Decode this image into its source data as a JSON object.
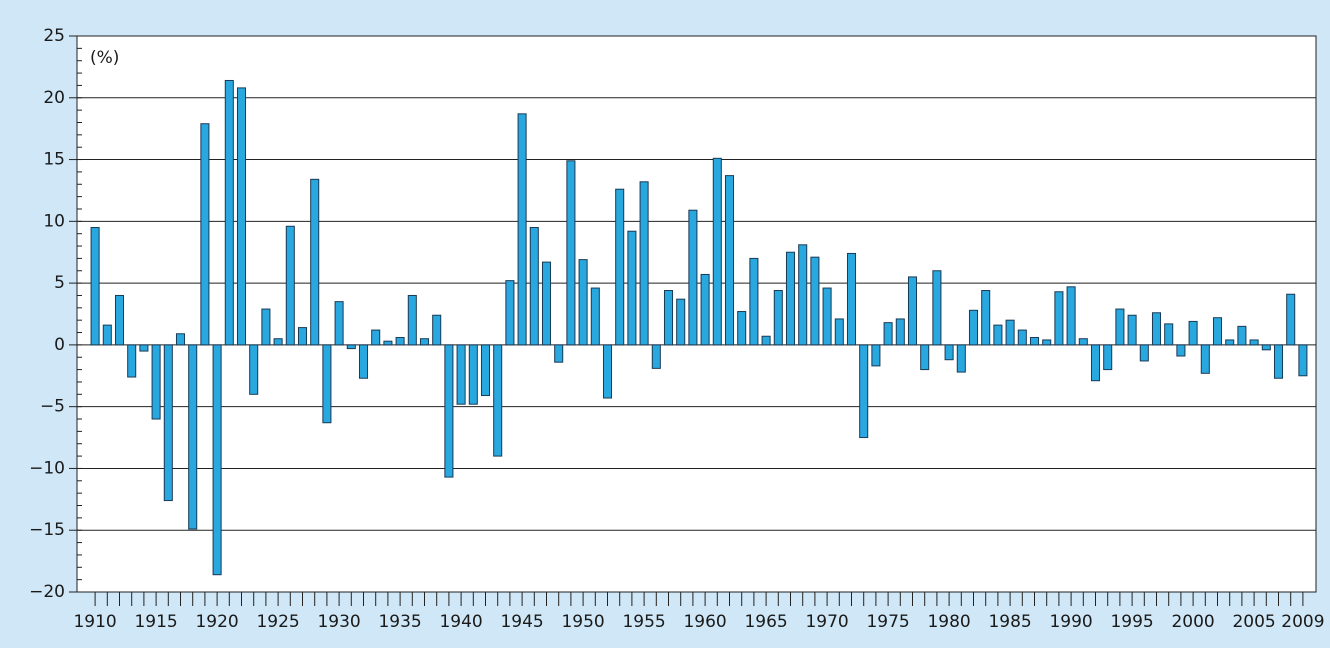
{
  "chart_data": {
    "type": "bar",
    "annotation": "(%)",
    "categories": [
      "1910",
      null,
      null,
      null,
      null,
      "1915",
      null,
      null,
      null,
      null,
      "1920",
      null,
      null,
      null,
      null,
      "1925",
      null,
      null,
      null,
      null,
      "1930",
      null,
      null,
      null,
      null,
      "1935",
      null,
      null,
      null,
      null,
      "1940",
      null,
      null,
      null,
      null,
      "1945",
      null,
      null,
      null,
      null,
      "1950",
      null,
      null,
      null,
      null,
      "1955",
      null,
      null,
      null,
      null,
      "1960",
      null,
      null,
      null,
      null,
      "1965",
      null,
      null,
      null,
      null,
      "1970",
      null,
      null,
      null,
      null,
      "1975",
      null,
      null,
      null,
      null,
      "1980",
      null,
      null,
      null,
      null,
      "1985",
      null,
      null,
      null,
      null,
      "1990",
      null,
      null,
      null,
      null,
      "1995",
      null,
      null,
      null,
      null,
      "2000",
      null,
      null,
      null,
      null,
      "2005",
      null,
      null,
      null,
      "2009"
    ],
    "values": [
      9.5,
      1.6,
      4.0,
      -2.6,
      -0.5,
      -6.0,
      -12.6,
      0.9,
      -14.9,
      17.9,
      -18.6,
      21.4,
      20.8,
      -4.0,
      2.9,
      0.5,
      9.6,
      1.4,
      13.4,
      -6.3,
      3.5,
      -0.3,
      -2.7,
      1.2,
      0.3,
      0.6,
      4.0,
      0.5,
      2.4,
      -10.7,
      -4.8,
      -4.8,
      -4.1,
      -9.0,
      5.2,
      18.7,
      9.5,
      6.7,
      -1.4,
      14.9,
      6.9,
      4.6,
      -4.3,
      12.6,
      9.2,
      13.2,
      -1.9,
      4.4,
      3.7,
      10.9,
      5.7,
      15.1,
      13.7,
      2.7,
      7.0,
      0.7,
      4.4,
      7.5,
      8.1,
      7.1,
      4.6,
      2.1,
      7.4,
      -7.5,
      -1.7,
      1.8,
      2.1,
      5.5,
      -2.0,
      6.0,
      -1.2,
      -2.2,
      2.8,
      4.4,
      1.6,
      2.0,
      1.2,
      0.6,
      0.4,
      4.3,
      4.7,
      0.5,
      -2.9,
      -2.0,
      2.9,
      2.4,
      -1.3,
      2.6,
      1.7,
      -0.9,
      1.9,
      -2.3,
      2.2,
      0.4,
      1.5,
      0.4,
      -0.4,
      -2.7,
      4.1,
      -2.5
    ],
    "color": "#29a8e0",
    "ylim": [
      -20,
      25
    ],
    "yticks": [
      {
        "value": -20,
        "label": "−20"
      },
      {
        "value": -15,
        "label": "−15"
      },
      {
        "value": -10,
        "label": "−10"
      },
      {
        "value": -5,
        "label": "−5"
      },
      0,
      5,
      10,
      15,
      20,
      25
    ],
    "grid": true
  }
}
